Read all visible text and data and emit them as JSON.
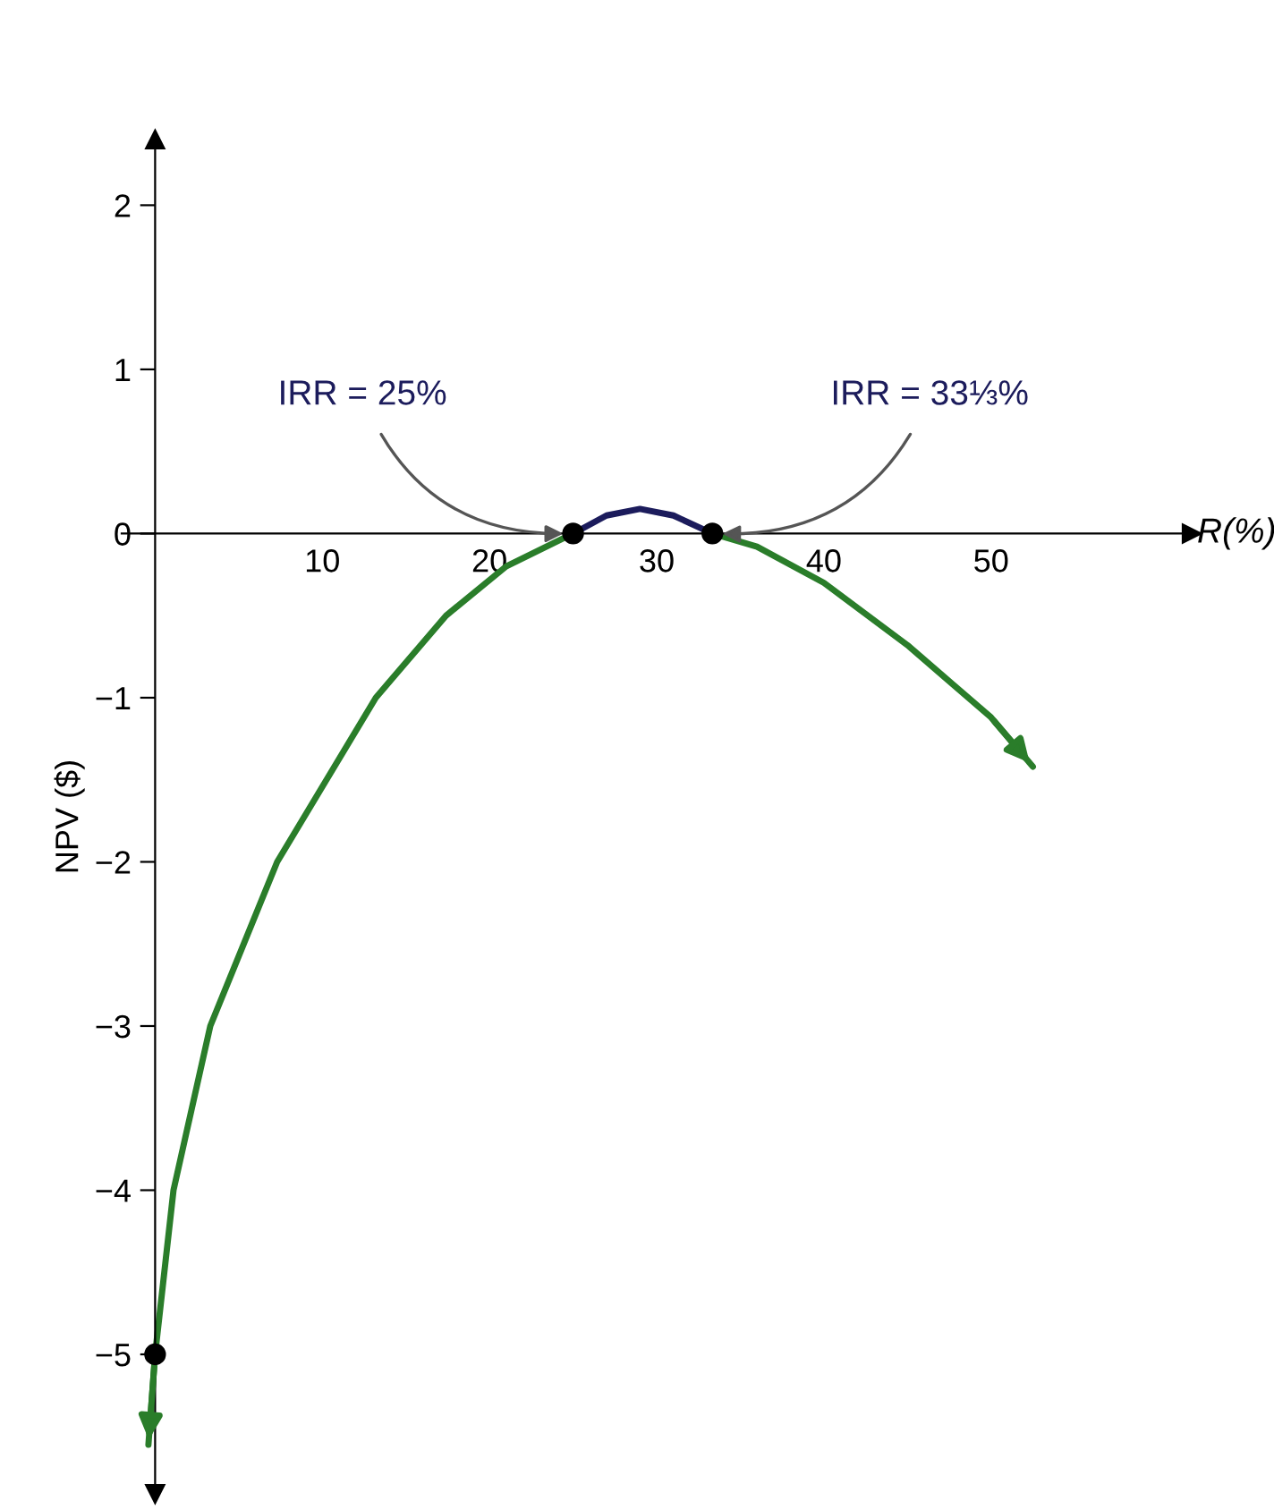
{
  "chart_data": {
    "type": "line",
    "xlabel": "R(%)",
    "ylabel": "NPV ($)",
    "xlim": [
      -2,
      62
    ],
    "ylim": [
      -5.85,
      2.4
    ],
    "xticks": [
      10,
      20,
      30,
      40,
      50
    ],
    "yticks": [
      -5,
      -4,
      -3,
      -2,
      -1,
      0,
      1,
      2
    ],
    "grid": false,
    "series": [
      {
        "color": "#2a7d2a",
        "x": [
          -0.4,
          0,
          1.1,
          3.3,
          7.3,
          13.2,
          17.4,
          21,
          25
        ],
        "values": [
          -5.55,
          -5,
          -4,
          -3,
          -2,
          -1,
          -0.5,
          -0.2,
          0
        ]
      },
      {
        "color": "#1c1c5c",
        "x": [
          25,
          27,
          29,
          31,
          33.33
        ],
        "values": [
          0,
          0.11,
          0.15,
          0.11,
          0
        ]
      },
      {
        "color": "#2a7d2a",
        "x": [
          33.33,
          36,
          40,
          45,
          50,
          52.5
        ],
        "values": [
          0,
          -0.08,
          -0.3,
          -0.68,
          -1.12,
          -1.42
        ]
      },
      {
        "type": "scatter",
        "marker": "circle",
        "color": "#000000",
        "x": [
          0,
          25,
          33.33
        ],
        "values": [
          -5,
          0,
          0
        ]
      }
    ],
    "annotations": [
      {
        "text": "IRR = 25%",
        "x": 25,
        "y": 0
      },
      {
        "text": "IRR = 33⅓%",
        "x": 33.33,
        "y": 0
      }
    ]
  }
}
